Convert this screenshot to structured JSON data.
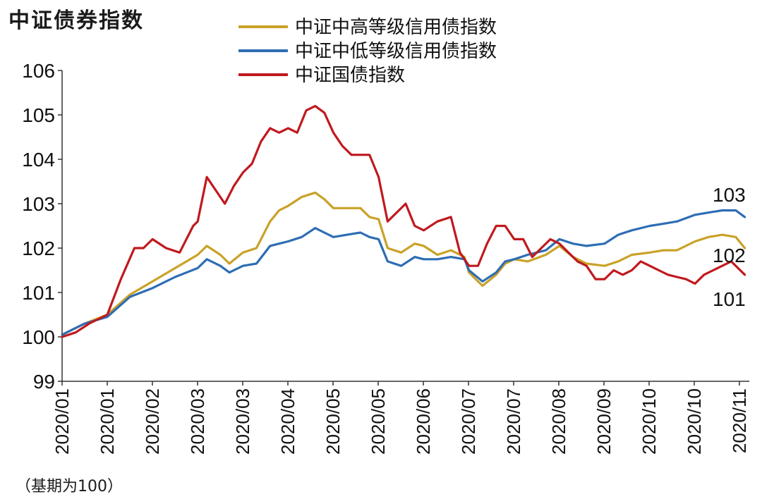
{
  "title": "中证债券指数",
  "note": "（基期为100）",
  "chart_data": {
    "type": "line",
    "title": "中证债券指数",
    "ylim": [
      99,
      106
    ],
    "yticks": [
      99,
      100,
      101,
      102,
      103,
      104,
      105,
      106
    ],
    "xlim": [
      0,
      15.2
    ],
    "x_tick_labels": [
      "2020/01",
      "2020/01",
      "2020/02",
      "2020/03",
      "2020/03",
      "2020/04",
      "2020/05",
      "2020/05",
      "2020/06",
      "2020/07",
      "2020/07",
      "2020/08",
      "2020/09",
      "2020/10",
      "2020/10",
      "2020/11"
    ],
    "legend_position": "top",
    "grid": false,
    "series": [
      {
        "name": "中证中高等级信用债指数",
        "color": "#C9A227",
        "end_label": "102",
        "x": [
          0,
          0.5,
          1,
          1.5,
          2,
          2.5,
          3,
          3.2,
          3.5,
          3.7,
          4,
          4.3,
          4.6,
          4.8,
          5,
          5.3,
          5.6,
          5.8,
          6,
          6.3,
          6.6,
          6.8,
          7,
          7.2,
          7.5,
          7.8,
          8,
          8.3,
          8.6,
          8.9,
          9,
          9.3,
          9.6,
          9.8,
          10,
          10.3,
          10.7,
          11,
          11.3,
          11.6,
          12,
          12.3,
          12.6,
          13,
          13.3,
          13.6,
          14,
          14.3,
          14.6,
          14.9,
          15.1
        ],
        "y": [
          100.05,
          100.3,
          100.5,
          100.95,
          101.25,
          101.55,
          101.85,
          102.05,
          101.85,
          101.65,
          101.9,
          102.0,
          102.6,
          102.85,
          102.95,
          103.15,
          103.25,
          103.1,
          102.9,
          102.9,
          102.9,
          102.7,
          102.65,
          102.0,
          101.9,
          102.1,
          102.05,
          101.85,
          101.95,
          101.8,
          101.45,
          101.15,
          101.4,
          101.65,
          101.75,
          101.7,
          101.85,
          102.05,
          101.8,
          101.65,
          101.6,
          101.7,
          101.85,
          101.9,
          101.95,
          101.95,
          102.15,
          102.25,
          102.3,
          102.25,
          102.0
        ]
      },
      {
        "name": "中证中低等级信用债指数",
        "color": "#2E6DB4",
        "end_label": "103",
        "x": [
          0,
          0.5,
          1,
          1.5,
          2,
          2.5,
          3,
          3.2,
          3.5,
          3.7,
          4,
          4.3,
          4.6,
          4.8,
          5,
          5.3,
          5.6,
          5.8,
          6,
          6.3,
          6.6,
          6.8,
          7,
          7.2,
          7.5,
          7.8,
          8,
          8.3,
          8.6,
          8.9,
          9,
          9.3,
          9.6,
          9.8,
          10,
          10.3,
          10.7,
          11,
          11.3,
          11.6,
          12,
          12.3,
          12.6,
          13,
          13.3,
          13.6,
          14,
          14.3,
          14.6,
          14.9,
          15.1
        ],
        "y": [
          100.05,
          100.3,
          100.45,
          100.9,
          101.1,
          101.35,
          101.55,
          101.75,
          101.6,
          101.45,
          101.6,
          101.65,
          102.05,
          102.1,
          102.15,
          102.25,
          102.45,
          102.35,
          102.25,
          102.3,
          102.35,
          102.25,
          102.2,
          101.7,
          101.6,
          101.8,
          101.75,
          101.75,
          101.8,
          101.75,
          101.5,
          101.25,
          101.45,
          101.7,
          101.75,
          101.85,
          101.95,
          102.2,
          102.1,
          102.05,
          102.1,
          102.3,
          102.4,
          102.5,
          102.55,
          102.6,
          102.75,
          102.8,
          102.85,
          102.85,
          102.7
        ]
      },
      {
        "name": "中证国债指数",
        "color": "#C0191E",
        "end_label": "101",
        "x": [
          0,
          0.3,
          0.6,
          1,
          1.3,
          1.6,
          1.8,
          2,
          2.3,
          2.6,
          2.9,
          3.0,
          3.2,
          3.4,
          3.6,
          3.8,
          4.0,
          4.2,
          4.4,
          4.6,
          4.8,
          5.0,
          5.2,
          5.4,
          5.6,
          5.8,
          6.0,
          6.2,
          6.4,
          6.6,
          6.8,
          7.0,
          7.2,
          7.4,
          7.6,
          7.8,
          8.0,
          8.3,
          8.6,
          8.8,
          9.0,
          9.2,
          9.4,
          9.6,
          9.8,
          10,
          10.2,
          10.4,
          10.6,
          10.8,
          11,
          11.2,
          11.4,
          11.6,
          11.8,
          12,
          12.2,
          12.4,
          12.6,
          12.8,
          13,
          13.2,
          13.4,
          13.6,
          13.8,
          14,
          14.2,
          14.4,
          14.6,
          14.8,
          15.0,
          15.1
        ],
        "y": [
          100.0,
          100.1,
          100.3,
          100.5,
          101.3,
          102.0,
          102.0,
          102.2,
          102.0,
          101.9,
          102.5,
          102.6,
          103.6,
          103.3,
          103.0,
          103.4,
          103.7,
          103.9,
          104.4,
          104.7,
          104.6,
          104.7,
          104.6,
          105.1,
          105.2,
          105.05,
          104.6,
          104.3,
          104.1,
          104.1,
          104.1,
          103.6,
          102.6,
          102.8,
          103.0,
          102.5,
          102.4,
          102.6,
          102.7,
          101.9,
          101.6,
          101.6,
          102.1,
          102.5,
          102.5,
          102.2,
          102.2,
          101.8,
          102.0,
          102.2,
          102.1,
          101.9,
          101.7,
          101.6,
          101.3,
          101.3,
          101.5,
          101.4,
          101.5,
          101.7,
          101.6,
          101.5,
          101.4,
          101.35,
          101.3,
          101.2,
          101.4,
          101.5,
          101.6,
          101.7,
          101.5,
          101.4
        ]
      }
    ]
  }
}
